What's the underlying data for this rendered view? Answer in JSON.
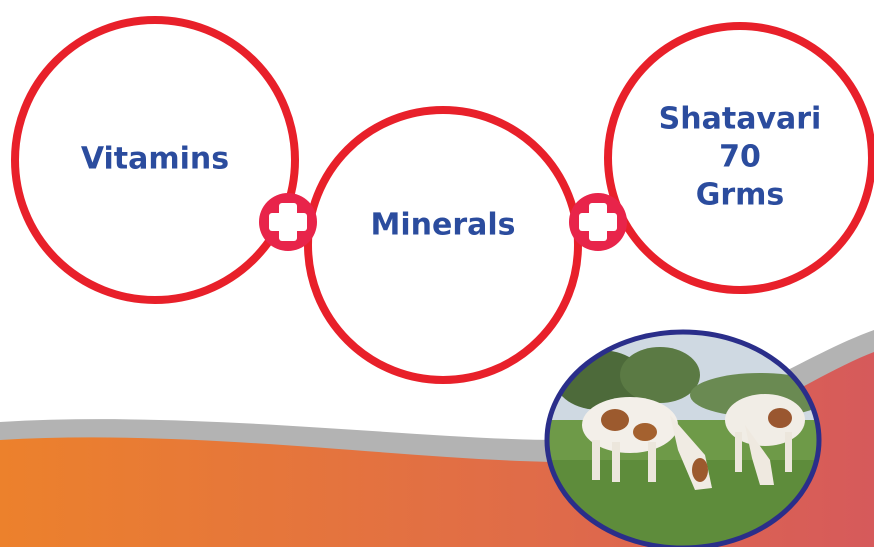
{
  "circles": [
    {
      "lines": [
        "Vitamins"
      ]
    },
    {
      "lines": [
        "Minerals"
      ]
    },
    {
      "lines": [
        "Shatavari",
        "70",
        "Grms"
      ]
    }
  ]
}
